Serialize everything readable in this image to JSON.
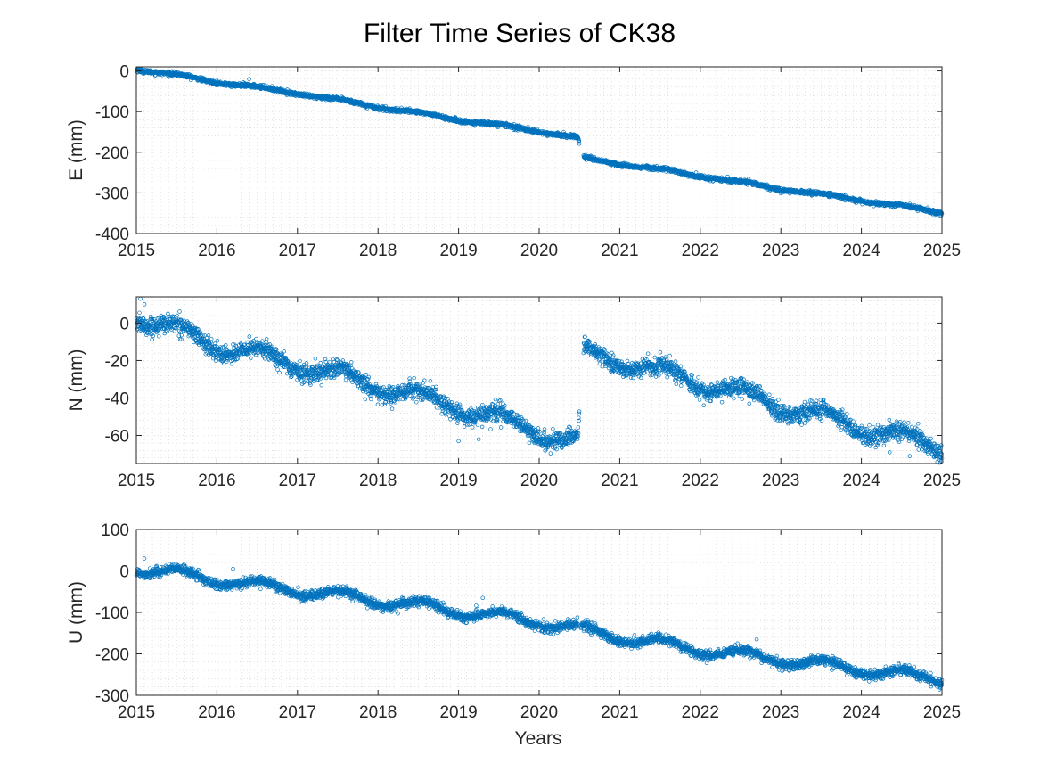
{
  "figure": {
    "title": "Filter Time Series of CK38",
    "xlabel": "Years",
    "marker_color": "#0072BD",
    "axis_color": "#262626",
    "grid_color": "#cfcfcf"
  },
  "chart_data": [
    {
      "type": "scatter",
      "component": "E",
      "ylabel": "E (mm)",
      "xlim": [
        2015,
        2025
      ],
      "ylim": [
        -400,
        10
      ],
      "xticks": [
        2015,
        2016,
        2017,
        2018,
        2019,
        2020,
        2021,
        2022,
        2023,
        2024,
        2025
      ],
      "yticks": [
        0,
        -100,
        -200,
        -300,
        -400
      ],
      "grid": "dotted major and minor",
      "gap": [
        2020.5,
        2020.55
      ],
      "trend_nodes": [
        [
          2015.0,
          5
        ],
        [
          2016.0,
          -27
        ],
        [
          2017.0,
          -55
        ],
        [
          2018.0,
          -88
        ],
        [
          2019.0,
          -120
        ],
        [
          2020.0,
          -148
        ],
        [
          2020.48,
          -165
        ],
        [
          2020.55,
          -215
        ],
        [
          2021.0,
          -228
        ],
        [
          2022.0,
          -258
        ],
        [
          2023.0,
          -290
        ],
        [
          2024.0,
          -318
        ],
        [
          2025.0,
          -348
        ]
      ],
      "seasonal_amplitude": 3,
      "noise": 2.5,
      "outliers": [
        [
          2016.4,
          -20
        ],
        [
          2019.2,
          -135
        ],
        [
          2022.6,
          -265
        ],
        [
          2024.7,
          -345
        ]
      ]
    },
    {
      "type": "scatter",
      "component": "N",
      "ylabel": "N (mm)",
      "xlim": [
        2015,
        2025
      ],
      "ylim": [
        -75,
        14
      ],
      "xticks": [
        2015,
        2016,
        2017,
        2018,
        2019,
        2020,
        2021,
        2022,
        2023,
        2024,
        2025
      ],
      "yticks": [
        0,
        -20,
        -40,
        -60
      ],
      "grid": "dotted major and minor",
      "gap": [
        2020.5,
        2020.55
      ],
      "trend_nodes": [
        [
          2015.0,
          4
        ],
        [
          2016.0,
          -12
        ],
        [
          2017.0,
          -22
        ],
        [
          2018.0,
          -34
        ],
        [
          2019.0,
          -45
        ],
        [
          2020.0,
          -58
        ],
        [
          2020.48,
          -64
        ],
        [
          2020.55,
          -16
        ],
        [
          2021.0,
          -20
        ],
        [
          2022.0,
          -32
        ],
        [
          2023.0,
          -44
        ],
        [
          2024.0,
          -56
        ],
        [
          2025.0,
          -66
        ]
      ],
      "seasonal_amplitude": 4,
      "noise": 2.4,
      "outliers": [
        [
          2015.05,
          13
        ],
        [
          2015.1,
          10
        ],
        [
          2019.0,
          -63
        ],
        [
          2019.25,
          -62
        ],
        [
          2024.6,
          -71
        ],
        [
          2024.35,
          -69
        ]
      ]
    },
    {
      "type": "scatter",
      "component": "U",
      "ylabel": "U (mm)",
      "xlim": [
        2015,
        2025
      ],
      "ylim": [
        -300,
        100
      ],
      "xticks": [
        2015,
        2016,
        2017,
        2018,
        2019,
        2020,
        2021,
        2022,
        2023,
        2024,
        2025
      ],
      "yticks": [
        100,
        0,
        -100,
        -200,
        -300
      ],
      "grid": "dotted major and minor",
      "gap": [
        2020.5,
        2020.5
      ],
      "trend_nodes": [
        [
          2015.0,
          8
        ],
        [
          2016.0,
          -22
        ],
        [
          2017.0,
          -47
        ],
        [
          2018.0,
          -72
        ],
        [
          2019.0,
          -97
        ],
        [
          2020.0,
          -122
        ],
        [
          2021.0,
          -160
        ],
        [
          2022.0,
          -190
        ],
        [
          2023.0,
          -214
        ],
        [
          2024.0,
          -238
        ],
        [
          2025.0,
          -262
        ]
      ],
      "seasonal_amplitude": 12,
      "noise": 6,
      "outliers": [
        [
          2015.1,
          30
        ],
        [
          2016.2,
          5
        ],
        [
          2019.3,
          -65
        ],
        [
          2022.7,
          -165
        ],
        [
          2019.1,
          -125
        ]
      ]
    }
  ]
}
